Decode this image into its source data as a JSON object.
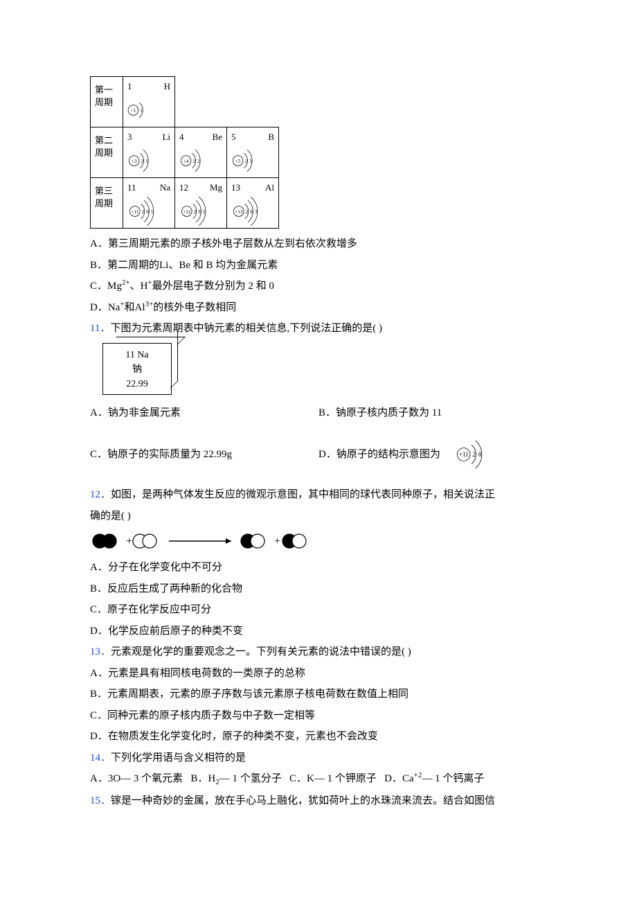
{
  "periodic_table": {
    "row_labels": [
      "第一周期",
      "第二周期",
      "第三周期"
    ],
    "rows": [
      [
        {
          "num": "1",
          "sym": "H",
          "core": "+1",
          "shells": [
            "1"
          ]
        }
      ],
      [
        {
          "num": "3",
          "sym": "Li",
          "core": "+3",
          "shells": [
            "2",
            "1"
          ]
        },
        {
          "num": "4",
          "sym": "Be",
          "core": "+4",
          "shells": [
            "2",
            "2"
          ]
        },
        {
          "num": "5",
          "sym": "B",
          "core": "+5",
          "shells": [
            "2",
            "3"
          ]
        }
      ],
      [
        {
          "num": "11",
          "sym": "Na",
          "core": "+11",
          "shells": [
            "2",
            "8",
            "1"
          ]
        },
        {
          "num": "12",
          "sym": "Mg",
          "core": "+12",
          "shells": [
            "2",
            "8",
            "2"
          ]
        },
        {
          "num": "13",
          "sym": "Al",
          "core": "+13",
          "shells": [
            "2",
            "8",
            "3"
          ]
        }
      ]
    ]
  },
  "q10": {
    "optA": "A．第三周期元素的原子核外电子层数从左到右依次救增多",
    "optB": "B．第二周期的Li、Be 和 B 均为金属元素",
    "optC_pre": "C．Mg",
    "optC_sup1": "2+",
    "optC_mid": "、H",
    "optC_sup2": "+",
    "optC_post": "最外层电子数分别为 2 和 0",
    "optD_pre": "D．Na",
    "optD_sup1": "+",
    "optD_mid": "和Al",
    "optD_sup2": "3+",
    "optD_post": "的核外电子数相同"
  },
  "q11": {
    "num": "11．",
    "stem": "下图为元素周期表中钠元素的相关信息,下列说法正确的是(   )",
    "cell": {
      "top": "11   Na",
      "name": "钠",
      "mass": "22.99"
    },
    "optA": "A．钠为非金属元素",
    "optB": "B．钠原子核内质子数为 11",
    "optC": "C．钠原子的实际质量为 22.99g",
    "optD_text": "D．钠原子的结构示意图为",
    "optD_atom": {
      "core": "+11",
      "shells": [
        "2",
        "8"
      ]
    }
  },
  "q12": {
    "num": "12．",
    "stem1": "如图，是两种气体发生反应的微观示意图，其中相同的球代表同种原子，相关说法正",
    "stem2": "确的是(  )",
    "reaction": {
      "black": "#000000",
      "white_stroke": "#000000",
      "plus": "+",
      "arrow_len": 90
    },
    "optA": "A．分子在化学变化中不可分",
    "optB": "B．反应后生成了两种新的化合物",
    "optC": "C．原子在化学反应中可分",
    "optD": "D．化学反应前后原子的种类不变"
  },
  "q13": {
    "num": "13．",
    "stem": "元素观是化学的重要观念之一。下列有关元素的说法中错误的是(  )",
    "optA": "A．元素是具有相同核电荷数的一类原子的总称",
    "optB": "B．元素周期表，元素的原子序数与该元素原子核电荷数在数值上相同",
    "optC": "C．同种元素的原子核内质子数与中子数一定相等",
    "optD": "D．在物质发生化学变化时，原子的种类不变，元素也不会改变"
  },
  "q14": {
    "num": "14．",
    "stem": "下列化学用语与含义相符的是",
    "optA": "A．3O— 3 个氧元素",
    "optB_pre": "B．H",
    "optB_sub": "2",
    "optB_post": "— 1 个氢分子",
    "optC": "C．K— 1 个钾原子",
    "optD_pre": "D．Ca",
    "optD_sup": "+2",
    "optD_post": "— 1 个钙离子"
  },
  "q15": {
    "num": "15．",
    "stem": "镓是一种奇妙的金属，放在手心马上融化，犹如荷叶上的水珠流来流去。结合如图信"
  },
  "colors": {
    "qnum": "#2244dd",
    "text": "#000000"
  }
}
